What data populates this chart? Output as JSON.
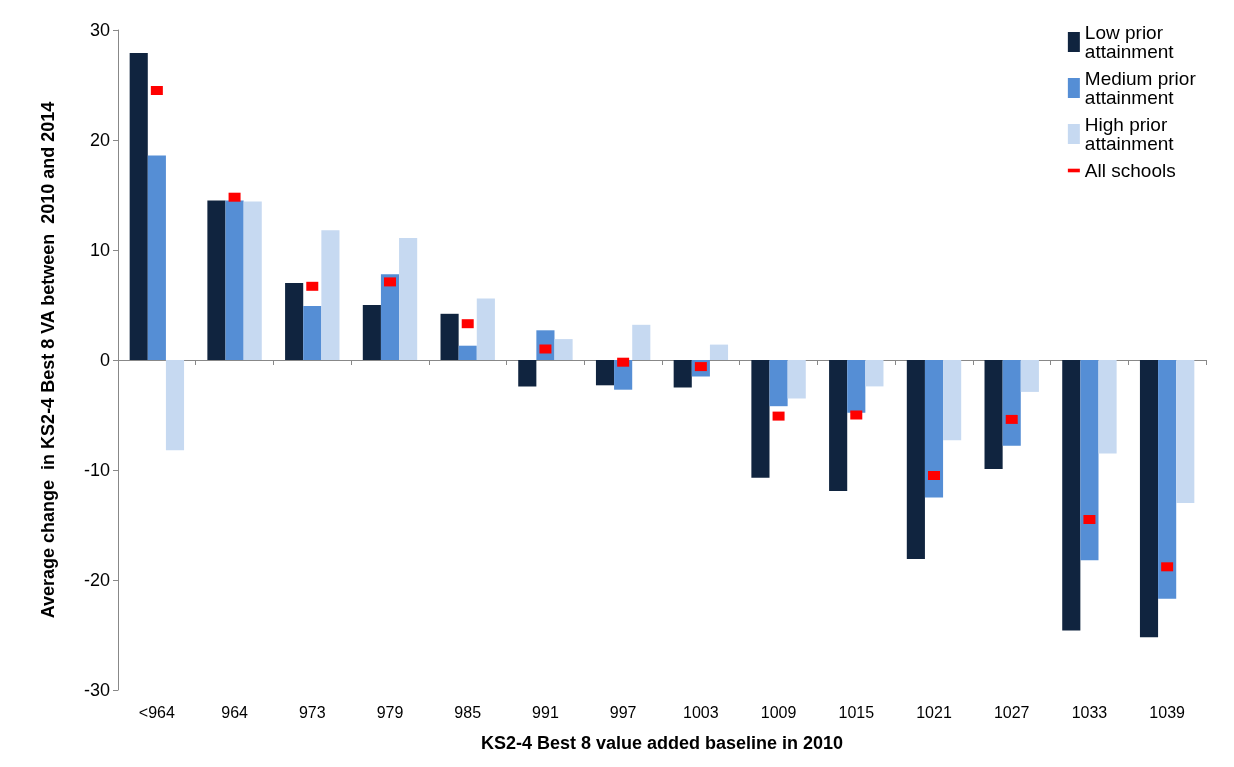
{
  "chart_data": {
    "type": "bar",
    "xlabel": "KS2-4 Best 8 value added baseline in 2010",
    "ylabel": "Average change  in KS2-4 Best 8 VA between  2010 and 2014",
    "categories": [
      "<964",
      "964",
      "973",
      "979",
      "985",
      "991",
      "997",
      "1003",
      "1009",
      "1015",
      "1021",
      "1027",
      "1033",
      "1039"
    ],
    "series": [
      {
        "name": "Low prior attainment",
        "color": "#10243f",
        "values": [
          27.9,
          14.5,
          7.0,
          5.0,
          4.2,
          -2.4,
          -2.3,
          -2.5,
          -10.7,
          -11.9,
          -18.1,
          -9.9,
          -24.6,
          -25.2
        ]
      },
      {
        "name": "Medium prior attainment",
        "color": "#558ed5",
        "values": [
          18.6,
          14.5,
          4.9,
          7.8,
          1.3,
          2.7,
          -2.7,
          -1.5,
          -4.2,
          -4.8,
          -12.5,
          -7.8,
          -18.2,
          -21.7
        ]
      },
      {
        "name": "High prior attainment",
        "color": "#c6d9f1",
        "values": [
          -8.2,
          14.4,
          11.8,
          11.1,
          5.6,
          1.9,
          3.2,
          1.4,
          -3.5,
          -2.4,
          -7.3,
          -2.9,
          -8.5,
          -13.0
        ]
      },
      {
        "name": "All schools",
        "type": "scatter",
        "color": "#ff0000",
        "values": [
          24.5,
          14.8,
          6.7,
          7.1,
          3.3,
          1.0,
          -0.2,
          -0.6,
          -5.1,
          -5.0,
          -10.5,
          -5.4,
          -14.5,
          -18.8
        ]
      }
    ],
    "ylim": [
      -30,
      30
    ],
    "yticks": [
      -30,
      -20,
      -10,
      0,
      10,
      20,
      30
    ],
    "legend": "top right"
  }
}
